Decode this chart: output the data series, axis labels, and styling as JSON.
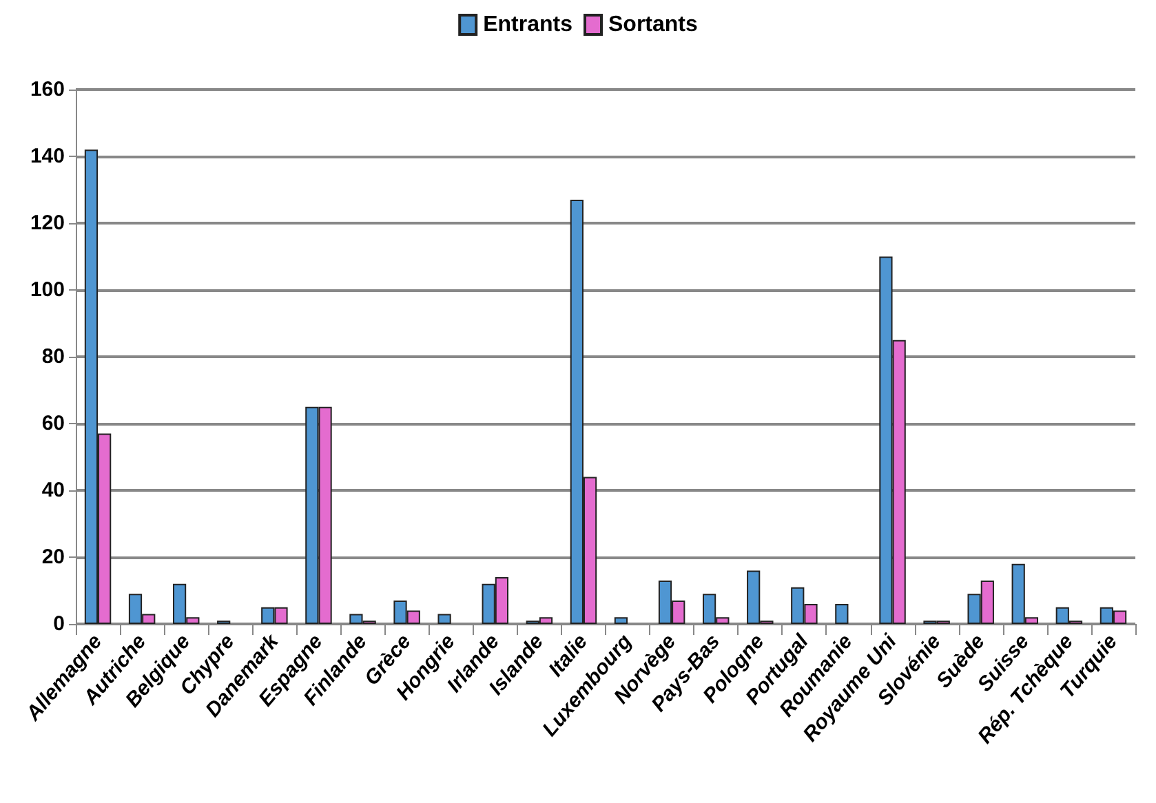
{
  "chart_data": {
    "type": "bar",
    "categories": [
      "Allemagne",
      "Autriche",
      "Belgique",
      "Chypre",
      "Danemark",
      "Espagne",
      "Finlande",
      "Grèce",
      "Hongrie",
      "Irlande",
      "Islande",
      "Italie",
      "Luxembourg",
      "Norvège",
      "Pays-Bas",
      "Pologne",
      "Portugal",
      "Roumanie",
      "Royaume Uni",
      "Slovénie",
      "Suède",
      "Suisse",
      "Rép. Tchèque",
      "Turquie"
    ],
    "series": [
      {
        "name": "Entrants",
        "color": "#4f96d2",
        "values": [
          142,
          9,
          12,
          1,
          5,
          65,
          3,
          7,
          3,
          12,
          1,
          127,
          2,
          13,
          9,
          16,
          11,
          6,
          110,
          1,
          9,
          18,
          5,
          5
        ]
      },
      {
        "name": "Sortants",
        "color": "#e46ccf",
        "values": [
          57,
          3,
          2,
          0,
          5,
          65,
          1,
          4,
          0,
          14,
          2,
          44,
          0,
          7,
          2,
          1,
          6,
          0,
          85,
          1,
          13,
          2,
          1,
          4
        ]
      }
    ],
    "ylim": [
      0,
      160
    ],
    "yticks": [
      0,
      20,
      40,
      60,
      80,
      100,
      120,
      140,
      160
    ],
    "grid": "y",
    "legend": "top"
  }
}
